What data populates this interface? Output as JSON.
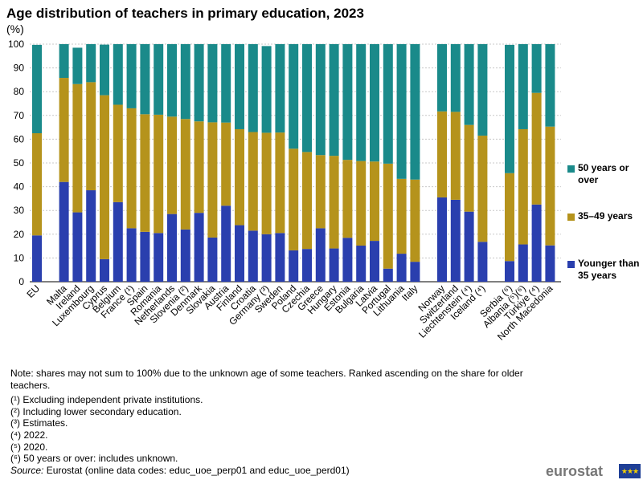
{
  "title": "Age distribution of teachers in primary education, 2023",
  "unit": "(%)",
  "colors": {
    "over50": "#1a8a8a",
    "mid": "#b5931c",
    "young": "#2a3fae",
    "grid": "#c8c8c8"
  },
  "legend": [
    {
      "label": "50 years or over",
      "color": "#1a8a8a"
    },
    {
      "label": "35–49 years",
      "color": "#b5931c"
    },
    {
      "label": "Younger than 35 years",
      "color": "#2a3fae"
    }
  ],
  "chart_data": {
    "type": "bar",
    "stacked": true,
    "ylim": [
      0,
      100
    ],
    "yticks": [
      0,
      10,
      20,
      30,
      40,
      50,
      60,
      70,
      80,
      90,
      100
    ],
    "grid": true,
    "legend_position": "right",
    "categories": [
      "EU",
      "Malta",
      "Ireland",
      "Luxembourg",
      "Cyprus",
      "Belgium",
      "France (¹)",
      "Spain",
      "Romania",
      "Netherlands",
      "Slovenia (²)",
      "Denmark",
      "Slovakia",
      "Austria",
      "Finland",
      "Croatia",
      "Germany (³)",
      "Sweden",
      "Poland",
      "Czechia",
      "Greece",
      "Hungary",
      "Estonia",
      "Bulgaria",
      "Latvia",
      "Portugal",
      "Lithuania",
      "Italy",
      "Norway",
      "Switzerland",
      "Liechtenstein (⁴)",
      "Iceland (⁴)",
      "Serbia (⁶)",
      "Albania (⁵)(⁶)",
      "Türkiye (⁴)",
      "North Macedonia"
    ],
    "groups": [
      1,
      27,
      4,
      4
    ],
    "series": [
      {
        "name": "Younger than 35 years",
        "values": [
          19.5,
          42,
          29.2,
          38.5,
          9.5,
          33.5,
          22.5,
          21,
          20.5,
          28.5,
          22,
          29,
          18.6,
          32,
          23.8,
          21.5,
          20,
          20.5,
          13.2,
          13.8,
          22.5,
          14,
          18.5,
          15.2,
          17.2,
          5.5,
          11.8,
          8.4,
          35.5,
          34.5,
          29.5,
          16.8,
          8.7,
          15.7,
          32.5,
          15.3
        ]
      },
      {
        "name": "35–49 years",
        "values": [
          43,
          43.8,
          54,
          45.5,
          69,
          41,
          50.5,
          49.5,
          49.8,
          41,
          46.5,
          38.5,
          48.5,
          35,
          40.4,
          41.5,
          42.7,
          42.3,
          42.8,
          40.8,
          30.8,
          39,
          32.8,
          35.6,
          33.4,
          44.2,
          31.5,
          34.6,
          36.2,
          37,
          36.5,
          44.7,
          37,
          48.5,
          47,
          50
        ]
      },
      {
        "name": "50 years or over",
        "values": [
          37.2,
          14.2,
          15.3,
          16,
          21.3,
          25.5,
          27,
          29.5,
          29.7,
          30.5,
          31.5,
          32.5,
          32.9,
          33,
          35.8,
          37,
          36.5,
          37.2,
          44,
          45.4,
          46.7,
          47,
          48.7,
          49.2,
          49.4,
          50.3,
          56.7,
          57,
          28.3,
          28.5,
          34,
          38.5,
          54,
          35.8,
          20.5,
          34.7
        ]
      }
    ]
  },
  "notes": {
    "note": "Note: shares may not sum to 100% due to the unknown age of some teachers. Ranked ascending on the share for older teachers.",
    "items": [
      "(¹) Excluding independent private institutions.",
      "(²) Including lower secondary education.",
      "(³) Estimates.",
      "(⁴) 2022.",
      "(⁵) 2020.",
      "(⁶) 50 years or over: includes unknown."
    ],
    "source_label": "Source:",
    "source_text": " Eurostat (online data codes: educ_uoe_perp01 and educ_uoe_perd01)"
  },
  "logo": {
    "text": "eurostat",
    "flag_icon": "eu-flag-icon"
  }
}
